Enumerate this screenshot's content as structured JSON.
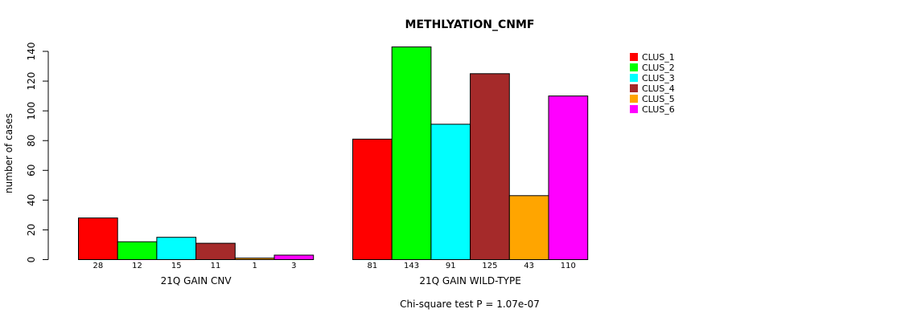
{
  "chart_data": {
    "type": "bar",
    "title": "METHLYATION_CNMF",
    "ylabel": "number of cases",
    "ylim": [
      0,
      140
    ],
    "yticks": [
      0,
      20,
      40,
      60,
      80,
      100,
      120,
      140
    ],
    "footer": "Chi-square test P = 1.07e-07",
    "series": [
      {
        "name": "CLUS_1",
        "color": "#ff0000"
      },
      {
        "name": "CLUS_2",
        "color": "#00ff00"
      },
      {
        "name": "CLUS_3",
        "color": "#00ffff"
      },
      {
        "name": "CLUS_4",
        "color": "#a52a2a"
      },
      {
        "name": "CLUS_5",
        "color": "#ffa500"
      },
      {
        "name": "CLUS_6",
        "color": "#ff00ff"
      }
    ],
    "groups": [
      {
        "label": "21Q GAIN CNV",
        "values": [
          28,
          12,
          15,
          11,
          1,
          3
        ]
      },
      {
        "label": "21Q GAIN WILD-TYPE",
        "values": [
          81,
          143,
          91,
          125,
          43,
          110
        ]
      }
    ]
  }
}
